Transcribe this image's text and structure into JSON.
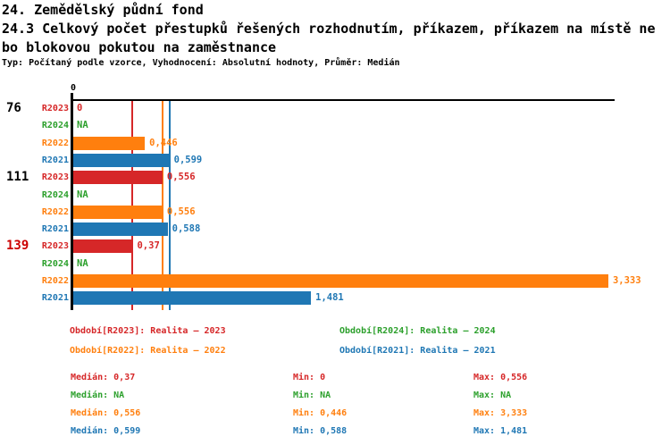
{
  "header": {
    "line1": "24. Zemědělský půdní fond",
    "line2": "24.3 Celkový počet přestupků řešených rozhodnutím, příkazem, příkazem na místě ne",
    "line3": "bo blokovou pokutou na zaměstnance",
    "meta": "Typ: Počítaný podle vzorce, Vyhodnocení: Absolutní hodnoty, Průměr: Medián"
  },
  "chart_data": {
    "type": "bar",
    "orientation": "horizontal",
    "title": "24.3 Celkový počet přestupků řešených rozhodnutím, příkazem, příkazem na místě nebo blokovou pokutou na zaměstnance",
    "xlabel": "",
    "ylabel": "",
    "xlim": [
      0,
      3.37
    ],
    "grid": false,
    "legend_position": "bottom",
    "x_axis": {
      "zero_label": "0"
    },
    "series_order": [
      "R2023",
      "R2024",
      "R2022",
      "R2021"
    ],
    "groups": [
      {
        "label": "76",
        "label_color": "#000000",
        "bars": [
          {
            "series": "R2023",
            "color": "#d62728",
            "value": 0,
            "label": "0"
          },
          {
            "series": "R2024",
            "color": "#2ca02c",
            "value": null,
            "label": "NA"
          },
          {
            "series": "R2022",
            "color": "#ff7f0e",
            "value": 0.446,
            "label": "0,446"
          },
          {
            "series": "R2021",
            "color": "#1f77b4",
            "value": 0.599,
            "label": "0,599"
          }
        ]
      },
      {
        "label": "111",
        "label_color": "#000000",
        "bars": [
          {
            "series": "R2023",
            "color": "#d62728",
            "value": 0.556,
            "label": "0,556"
          },
          {
            "series": "R2024",
            "color": "#2ca02c",
            "value": null,
            "label": "NA"
          },
          {
            "series": "R2022",
            "color": "#ff7f0e",
            "value": 0.556,
            "label": "0,556"
          },
          {
            "series": "R2021",
            "color": "#1f77b4",
            "value": 0.588,
            "label": "0,588"
          }
        ]
      },
      {
        "label": "139",
        "label_color": "#cc0000",
        "bars": [
          {
            "series": "R2023",
            "color": "#d62728",
            "value": 0.37,
            "label": "0,37"
          },
          {
            "series": "R2024",
            "color": "#2ca02c",
            "value": null,
            "label": "NA"
          },
          {
            "series": "R2022",
            "color": "#ff7f0e",
            "value": 3.333,
            "label": "3,333"
          },
          {
            "series": "R2021",
            "color": "#1f77b4",
            "value": 1.481,
            "label": "1,481"
          }
        ]
      }
    ],
    "median_lines": [
      {
        "series": "R2023",
        "value": 0.37,
        "color": "#d62728"
      },
      {
        "series": "R2022",
        "value": 0.556,
        "color": "#ff7f0e"
      },
      {
        "series": "R2021",
        "value": 0.599,
        "color": "#1f77b4"
      }
    ]
  },
  "legend": {
    "items": [
      {
        "label": "Období[R2023]: Realita – 2023",
        "color": "#d62728"
      },
      {
        "label": "Období[R2024]: Realita – 2024",
        "color": "#2ca02c"
      },
      {
        "label": "Období[R2022]: Realita – 2022",
        "color": "#ff7f0e"
      },
      {
        "label": "Období[R2021]: Realita – 2021",
        "color": "#1f77b4"
      }
    ]
  },
  "stats": {
    "rows": [
      {
        "color": "#d62728",
        "median": "Medián: 0,37",
        "min": "Min: 0",
        "max": "Max: 0,556"
      },
      {
        "color": "#2ca02c",
        "median": "Medián: NA",
        "min": "Min: NA",
        "max": "Max: NA"
      },
      {
        "color": "#ff7f0e",
        "median": "Medián: 0,556",
        "min": "Min: 0,446",
        "max": "Max: 3,333"
      },
      {
        "color": "#1f77b4",
        "median": "Medián: 0,599",
        "min": "Min: 0,588",
        "max": "Max: 1,481"
      }
    ]
  }
}
